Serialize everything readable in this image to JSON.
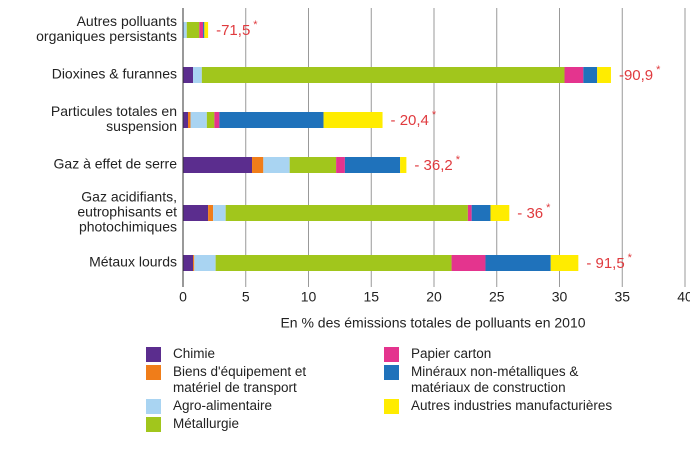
{
  "chart_data": {
    "type": "stacked-bar-horizontal",
    "categories": [
      [
        "Autres polluants",
        "organiques persistants"
      ],
      [
        "Dioxines & furannes"
      ],
      [
        "Particules totales en",
        "suspension"
      ],
      [
        "Gaz à effet de serre"
      ],
      [
        "Gaz acidifiants,",
        "eutrophisants et",
        "photochimiques"
      ],
      [
        "Métaux lourds"
      ]
    ],
    "series": [
      {
        "name": "Chimie",
        "color": "#5b2d8e",
        "values": [
          0,
          0.8,
          0.4,
          5.5,
          2.0,
          0.8
        ]
      },
      {
        "name": "Biens d'équipement et matériel de transport",
        "color": "#f07d19",
        "values": [
          0,
          0,
          0.2,
          0.9,
          0.4,
          0.1
        ]
      },
      {
        "name": "Agro-alimentaire",
        "color": "#a9d4f2",
        "values": [
          0.3,
          0.7,
          1.3,
          2.1,
          1.0,
          1.7
        ]
      },
      {
        "name": "Métallurgie",
        "color": "#a1c61c",
        "values": [
          1.0,
          28.9,
          0.6,
          3.7,
          19.3,
          18.8
        ]
      },
      {
        "name": "Papier carton",
        "color": "#e4348e",
        "values": [
          0.3,
          1.5,
          0.4,
          0.7,
          0.3,
          2.7
        ]
      },
      {
        "name": "Minéraux non-métalliques & matériaux de construction",
        "color": "#1f72bb",
        "values": [
          0.1,
          1.1,
          8.3,
          4.4,
          1.5,
          5.2
        ]
      },
      {
        "name": "Autres industries manufacturières",
        "color": "#ffec00",
        "values": [
          0.3,
          1.1,
          4.7,
          0.5,
          1.5,
          2.2
        ]
      }
    ],
    "annotations": [
      "-71,5",
      "-90,9",
      "- 20,4",
      "- 36,2",
      "- 36",
      "- 91,5"
    ],
    "annotation_mark": "*",
    "x_label": "En % des émissions totales de polluants en 2010",
    "xlim": [
      0,
      40
    ],
    "xticks": [
      0,
      5,
      10,
      15,
      20,
      25,
      30,
      35,
      40
    ],
    "grid": true
  }
}
